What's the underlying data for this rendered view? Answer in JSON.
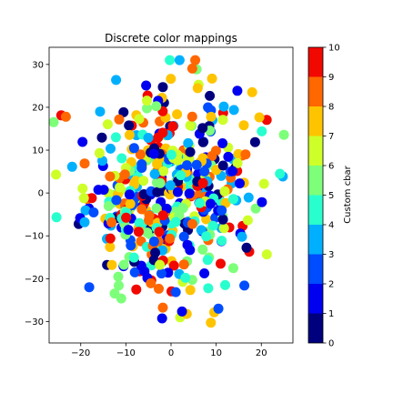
{
  "chart_data": {
    "type": "scatter",
    "title": "Discrete color mappings",
    "xlabel": "",
    "ylabel": "",
    "xlim": [
      -27,
      27
    ],
    "ylim": [
      -35,
      34
    ],
    "x_ticks": [
      -20,
      -10,
      0,
      10,
      20
    ],
    "y_ticks": [
      -30,
      -20,
      -10,
      0,
      10,
      20,
      30
    ],
    "grid": false,
    "legend": "none",
    "point_count": 500,
    "colorbar": {
      "label": "Custom cbar",
      "range": [
        0,
        10
      ],
      "ticks": [
        0,
        1,
        2,
        3,
        4,
        5,
        6,
        7,
        8,
        9,
        10
      ],
      "colormap": "jet",
      "levels": 10,
      "colors": [
        "#00007f",
        "#0000f1",
        "#004cff",
        "#00b0ff",
        "#29ffce",
        "#7dff7a",
        "#ceff29",
        "#ffc400",
        "#ff6700",
        "#f10800",
        "#7f0000"
      ]
    },
    "points_note_omitted": false,
    "seed": 42
  }
}
